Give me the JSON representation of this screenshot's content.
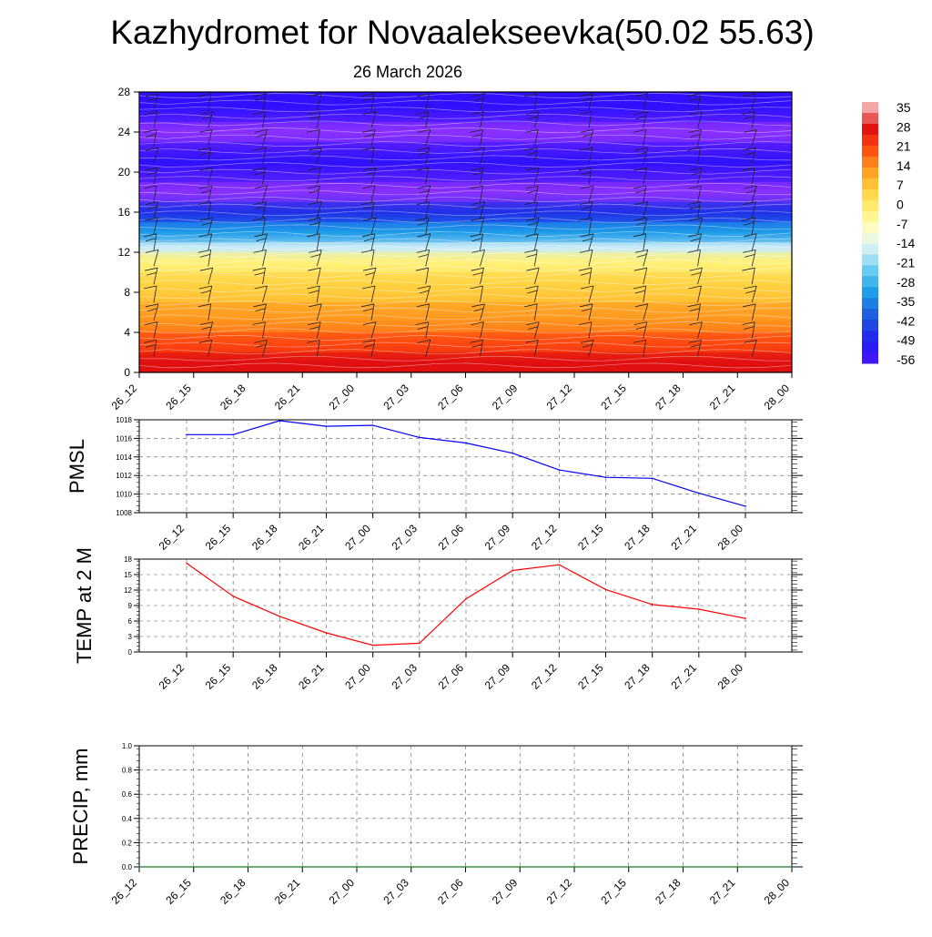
{
  "header": {
    "title": "Kazhydromet for Novaalekseevka(50.02 55.63)",
    "subtitle": "26 March 2026"
  },
  "colorbar": {
    "labels": [
      "35",
      "28",
      "21",
      "14",
      "7",
      "0",
      "-7",
      "-14",
      "-21",
      "-28",
      "-35",
      "-42",
      "-49",
      "-56"
    ],
    "colors": [
      "#f4a6a6",
      "#e01010",
      "#ff4a10",
      "#ff9a20",
      "#ffd040",
      "#fff27a",
      "#ffffd0",
      "#c8ecf8",
      "#60c8f0",
      "#1e9ce8",
      "#2060e0",
      "#2030e8",
      "#3010ff",
      "#8a30ff"
    ]
  },
  "chart_data": [
    {
      "type": "heatmap",
      "title": "",
      "xlabel": "",
      "ylabel": "",
      "x": [
        "26_12",
        "26_15",
        "26_18",
        "26_21",
        "27_00",
        "27_03",
        "27_06",
        "27_09",
        "27_12",
        "27_15",
        "27_18",
        "27_21",
        "28_00"
      ],
      "ylim": [
        0,
        28
      ],
      "yticks": [
        "0",
        "4",
        "8",
        "12",
        "16",
        "20",
        "24",
        "28"
      ],
      "zlim": [
        -56,
        35
      ],
      "bands": [
        {
          "y0": 0,
          "y1": 2,
          "value": 28
        },
        {
          "y0": 2,
          "y1": 4,
          "value": 21
        },
        {
          "y0": 4,
          "y1": 7,
          "value": 14
        },
        {
          "y0": 7,
          "y1": 10,
          "value": 7
        },
        {
          "y0": 10,
          "y1": 12,
          "value": 0
        },
        {
          "y0": 12,
          "y1": 13,
          "value": -14
        },
        {
          "y0": 13,
          "y1": 15,
          "value": -28
        },
        {
          "y0": 15,
          "y1": 17,
          "value": -42
        },
        {
          "y0": 17,
          "y1": 19,
          "value": -56
        },
        {
          "y0": 19,
          "y1": 23,
          "value": -49
        },
        {
          "y0": 23,
          "y1": 25,
          "value": -56
        },
        {
          "y0": 25,
          "y1": 28,
          "value": -49
        }
      ]
    },
    {
      "type": "line",
      "title": "",
      "xlabel": "",
      "ylabel": "PMSL",
      "x": [
        "26_12",
        "26_15",
        "26_18",
        "26_21",
        "27_00",
        "27_03",
        "27_06",
        "27_09",
        "27_12",
        "27_15",
        "27_18",
        "27_21",
        "28_00"
      ],
      "ylim": [
        1008,
        1018
      ],
      "yticks": [
        "1008",
        "1010",
        "1012",
        "1014",
        "1016",
        "1018"
      ],
      "series": [
        {
          "color": "#0000ff",
          "values": [
            1016.4,
            1016.4,
            1017.9,
            1017.3,
            1017.4,
            1016.1,
            1015.5,
            1014.4,
            1012.6,
            1011.8,
            1011.7,
            1010.1,
            1008.7
          ]
        }
      ]
    },
    {
      "type": "line",
      "title": "",
      "xlabel": "",
      "ylabel": "TEMP at 2 M",
      "x": [
        "26_12",
        "26_15",
        "26_18",
        "26_21",
        "27_00",
        "27_03",
        "27_06",
        "27_09",
        "27_12",
        "27_15",
        "27_18",
        "27_21",
        "28_00"
      ],
      "ylim": [
        0,
        18
      ],
      "yticks": [
        "0",
        "3",
        "6",
        "9",
        "12",
        "15",
        "18"
      ],
      "series": [
        {
          "color": "#ff0000",
          "values": [
            17.2,
            10.8,
            6.9,
            3.7,
            1.3,
            1.7,
            10.3,
            15.8,
            16.9,
            12.1,
            9.2,
            8.3,
            6.5
          ]
        }
      ]
    },
    {
      "type": "line",
      "title": "",
      "xlabel": "",
      "ylabel": "PRECIP, mm",
      "x": [
        "26_12",
        "26_15",
        "26_18",
        "26_21",
        "27_00",
        "27_03",
        "27_06",
        "27_09",
        "27_12",
        "27_15",
        "27_18",
        "27_21",
        "28_00"
      ],
      "ylim": [
        0,
        1
      ],
      "yticks": [
        "0.0",
        "0.2",
        "0.4",
        "0.6",
        "0.8",
        "1.0"
      ],
      "series": [
        {
          "color": "#1a7a1a",
          "values": [
            0,
            0,
            0,
            0,
            0,
            0,
            0,
            0,
            0,
            0,
            0,
            0,
            0
          ]
        }
      ]
    }
  ]
}
